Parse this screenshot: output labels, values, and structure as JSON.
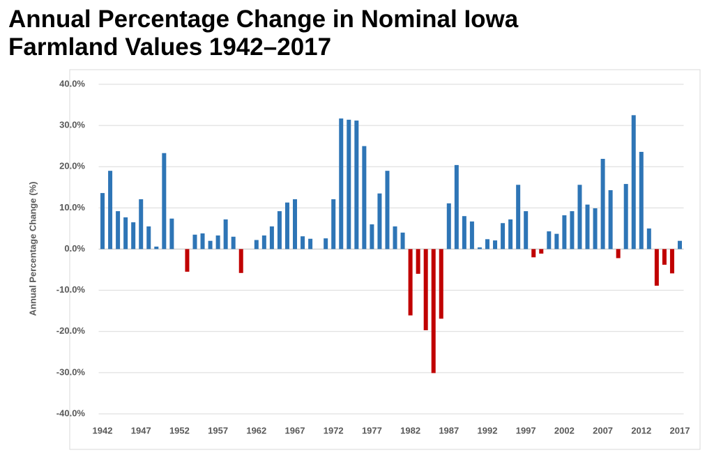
{
  "chart_data": {
    "type": "bar",
    "title": "Annual Percentage Change in Nominal Iowa Farmland Values 1942–2017",
    "y_label": "Annual Percentage Change (%)",
    "categories": [
      "1942",
      null,
      null,
      null,
      null,
      "1947",
      null,
      null,
      null,
      null,
      "1952",
      null,
      null,
      null,
      null,
      "1957",
      null,
      null,
      null,
      null,
      "1962",
      null,
      null,
      null,
      null,
      "1967",
      null,
      null,
      null,
      null,
      "1972",
      null,
      null,
      null,
      null,
      "1977",
      null,
      null,
      null,
      null,
      "1982",
      null,
      null,
      null,
      null,
      "1987",
      null,
      null,
      null,
      null,
      "1992",
      null,
      null,
      null,
      null,
      "1997",
      null,
      null,
      null,
      null,
      "2002",
      null,
      null,
      null,
      null,
      "2007",
      null,
      null,
      null,
      null,
      "2012",
      null,
      null,
      null,
      null,
      "2017"
    ],
    "values": [
      13.6,
      19.0,
      9.2,
      7.7,
      6.5,
      12.1,
      5.5,
      0.6,
      23.3,
      7.4,
      0,
      -5.5,
      3.5,
      3.8,
      2.0,
      3.3,
      7.2,
      3.0,
      -5.8,
      0,
      2.2,
      3.3,
      5.5,
      9.2,
      11.3,
      12.1,
      3.1,
      2.5,
      0,
      2.6,
      12.1,
      31.7,
      31.4,
      31.2,
      25.0,
      6.0,
      13.5,
      19.0,
      5.5,
      4.0,
      -16.1,
      -6.0,
      -19.7,
      -30.1,
      -16.9,
      11.1,
      20.4,
      8.0,
      6.7,
      0.4,
      2.4,
      2.1,
      6.3,
      7.2,
      15.6,
      9.2,
      -2.0,
      -1.1,
      4.3,
      3.7,
      8.2,
      9.2,
      15.6,
      10.8,
      9.9,
      21.9,
      14.3,
      -2.2,
      15.8,
      32.5,
      23.6,
      5.0,
      -8.9,
      -3.8,
      -5.9,
      2.0
    ],
    "color": "#2e75b6",
    "negative_color": "#c00000",
    "ylim": [
      -40,
      40
    ],
    "yticks": [
      {
        "value": -40,
        "label": "-40.0%"
      },
      {
        "value": -30,
        "label": "-30.0%"
      },
      {
        "value": -20,
        "label": "-20.0%"
      },
      {
        "value": -10,
        "label": "-10.0%"
      },
      {
        "value": 0,
        "label": "0.0%"
      },
      {
        "value": 10,
        "label": "10.0%"
      },
      {
        "value": 20,
        "label": "20.0%"
      },
      {
        "value": 30,
        "label": "30.0%"
      },
      {
        "value": 40,
        "label": "40.0%"
      }
    ],
    "grid": true
  }
}
